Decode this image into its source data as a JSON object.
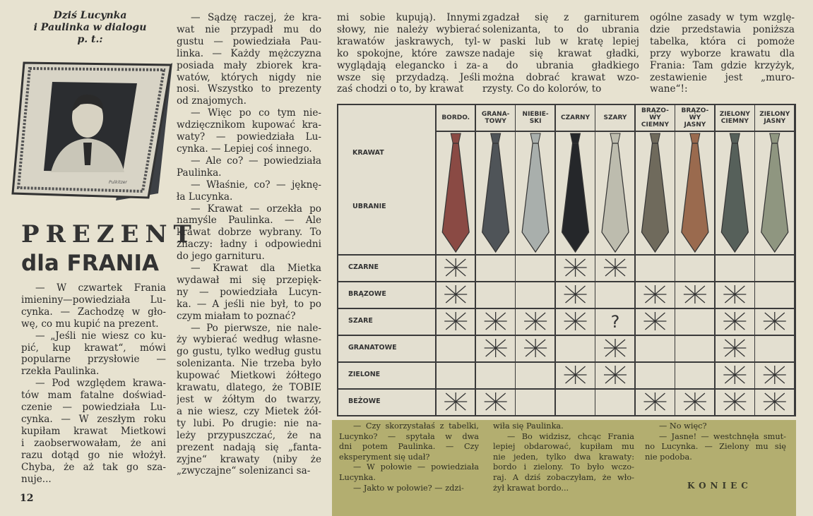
{
  "intro_heading": [
    "Dziś Lucynka",
    "i Paulinka w dialogu",
    "p. t.:"
  ],
  "illustration": {
    "description_icon": "framed-portrait-of-young-man",
    "signature": "Pulkitzer"
  },
  "title": {
    "line1": "PREZENT",
    "line2": "dla FRANIA"
  },
  "page_number": "12",
  "columns": [
    [
      [
        "— W czwartek Frania",
        "imieniny—powiedziała Lu-",
        "cynka. — Zachodzę w gło-",
        "wę, co mu kupić na prezent."
      ],
      [
        "— „Jeśli nie wiesz co ku-",
        "pić, kup krawat“, mówi",
        "popularne przysłowie —",
        "rzekła Paulinka."
      ],
      [
        "— Pod względem krawa-",
        "tów mam fatalne doświad-",
        "czenie — powiedziała Lu-",
        "cynka. — W zeszłym roku",
        "kupiłam krawat Mietkowi",
        "i zaobserwowałam, że ani",
        "razu dotąd go nie włożył.",
        "Chyba, że aż tak go sza-",
        "nuje..."
      ]
    ],
    [
      [
        "— Sądzę raczej, że kra-",
        "wat nie przypadł mu do",
        "gustu — powiedziała Pau-",
        "linka. — Każdy mężczyzna",
        "posiada mały zbiorek kra-",
        "watów, których nigdy nie",
        "nosi. Wszystko to prezenty",
        "od znajomych."
      ],
      [
        "— Więc po co tym nie-",
        "wdzięcznikom kupować kra-",
        "waty? — powiedziała Lu-",
        "cynka. — Lepiej coś innego."
      ],
      [
        "— Ale co? — powiedziała",
        "Paulinka."
      ],
      [
        "— Właśnie, co? — jęknę-",
        "ła Lucynka."
      ],
      [
        "— Krawat — orzekła po",
        "namyśle Paulinka. — Ale",
        "krawat dobrze wybrany. To",
        "znaczy: ładny i odpowiedni",
        "do jego garnituru."
      ],
      [
        "— Krawat dla Mietka",
        "wydawał mi się przepięk-",
        "ny — powiedziała Lucyn-",
        "ka. — A jeśli nie był, to po",
        "czym miałam to poznać?"
      ],
      [
        "— Po pierwsze, nie nale-",
        "ży wybierać według własne-",
        "go gustu, tylko według gustu",
        "solenizanta. Nie trzeba było",
        "kupować Mietkowi żółtego",
        "krawatu, dlatego, że TOBIE",
        "jest w żółtym do twarzy,",
        "a nie wiesz, czy Mietek żół-",
        "ty lubi. Po drugie: nie na-",
        "leży przypuszczać, że na",
        "prezent nadają się „fanta-",
        "zyjne“ krawaty (niby że",
        "„zwyczajne“ solenizanci sa-"
      ]
    ],
    [
      [
        "mi sobie kupują). Innymi",
        "słowy, nie należy wybierać",
        "krawatów jaskrawych, tyl-",
        "ko spokojne, które zawsze",
        "wyglądają elegancko i za-",
        "wsze się przydadzą. Jeśli",
        "zaś chodzi o to, by krawat"
      ]
    ],
    [
      [
        "zgadzał się z garniturem",
        "solenizanta, to do ubrania",
        "w paski lub w kratę lepiej",
        "nadaje się krawat gładki,",
        "a do ubrania gładkiego",
        "można dobrać krawat wzo-",
        "rzysty. Co do kolorów, to"
      ]
    ],
    [
      [
        "ogólne zasady w tym wzglę-",
        "dzie przedstawia poniższa",
        "tabelka, która ci pomoże",
        "przy wyborze krawatu dla",
        "Frania: Tam gdzie krzyżyk,",
        "zestawienie jest „muro-",
        "wane“!:"
      ]
    ]
  ],
  "table": {
    "row_header_top": "KRAWAT",
    "row_header_bottom": "UBRANIE",
    "ties": [
      {
        "label": "BORDO.",
        "color": "#8a4a44"
      },
      {
        "label": "GRANA-\nTOWY",
        "color": "#4f5458"
      },
      {
        "label": "NIEBIE-\nSKI",
        "color": "#a9afac"
      },
      {
        "label": "CZARNY",
        "color": "#25272a"
      },
      {
        "label": "SZARY",
        "color": "#bdbcae"
      },
      {
        "label": "BRĄZO-\nWY\nCIEMNY",
        "color": "#6f6a5c"
      },
      {
        "label": "BRĄZO-\nWY\nJASNY",
        "color": "#9a6a4e"
      },
      {
        "label": "ZIELONY\nCIEMNY",
        "color": "#56605a"
      },
      {
        "label": "ZIELONY\nJASNY",
        "color": "#8f9680"
      }
    ],
    "rows": [
      {
        "label": "CZARNE",
        "marks": [
          "X",
          "",
          "",
          "X",
          "X",
          "",
          "",
          "",
          ""
        ]
      },
      {
        "label": "BRĄZOWE",
        "marks": [
          "X",
          "",
          "",
          "X",
          "",
          "X",
          "X",
          "X",
          ""
        ]
      },
      {
        "label": "SZARE",
        "marks": [
          "X",
          "X",
          "X",
          "X",
          "?",
          "X",
          "",
          "X",
          "X"
        ]
      },
      {
        "label": "GRANATOWE",
        "marks": [
          "",
          "X",
          "X",
          "",
          "X",
          "",
          "",
          "X",
          ""
        ]
      },
      {
        "label": "ZIELONE",
        "marks": [
          "",
          "",
          "",
          "X",
          "X",
          "",
          "",
          "X",
          "X"
        ]
      },
      {
        "label": "BEŻOWE",
        "marks": [
          "X",
          "X",
          "",
          "",
          "",
          "X",
          "X",
          "X",
          "X"
        ]
      }
    ]
  },
  "box": {
    "color": "#b3ae70",
    "columns": [
      [
        [
          "— Czy skorzystałaś z tabelki,",
          "Lucynko? — spytała w dwa",
          "dni potem Paulinka. — Czy",
          "eksperyment się udał?"
        ],
        [
          "— W połowie — powiedziała",
          "Lucynka."
        ],
        [
          "— Jakto w połowie? — zdzi-"
        ]
      ],
      [
        [
          "wiła się Paulinka."
        ],
        [
          "— Bo widzisz, chcąc Frania",
          "lepiej obdarować, kupiłam mu",
          "nie jeden, tylko dwa krawaty:",
          "bordo i zielony. To było wczo-",
          "raj. A dziś zobaczyłam, że wło-",
          "żył krawat bordo..."
        ]
      ],
      [
        [
          "— No więc?"
        ],
        [
          "— Jasne! — westchnęła smut-",
          "no Lucynka. — Zielony mu się",
          "nie podoba."
        ]
      ]
    ],
    "end": "KONIEC"
  }
}
